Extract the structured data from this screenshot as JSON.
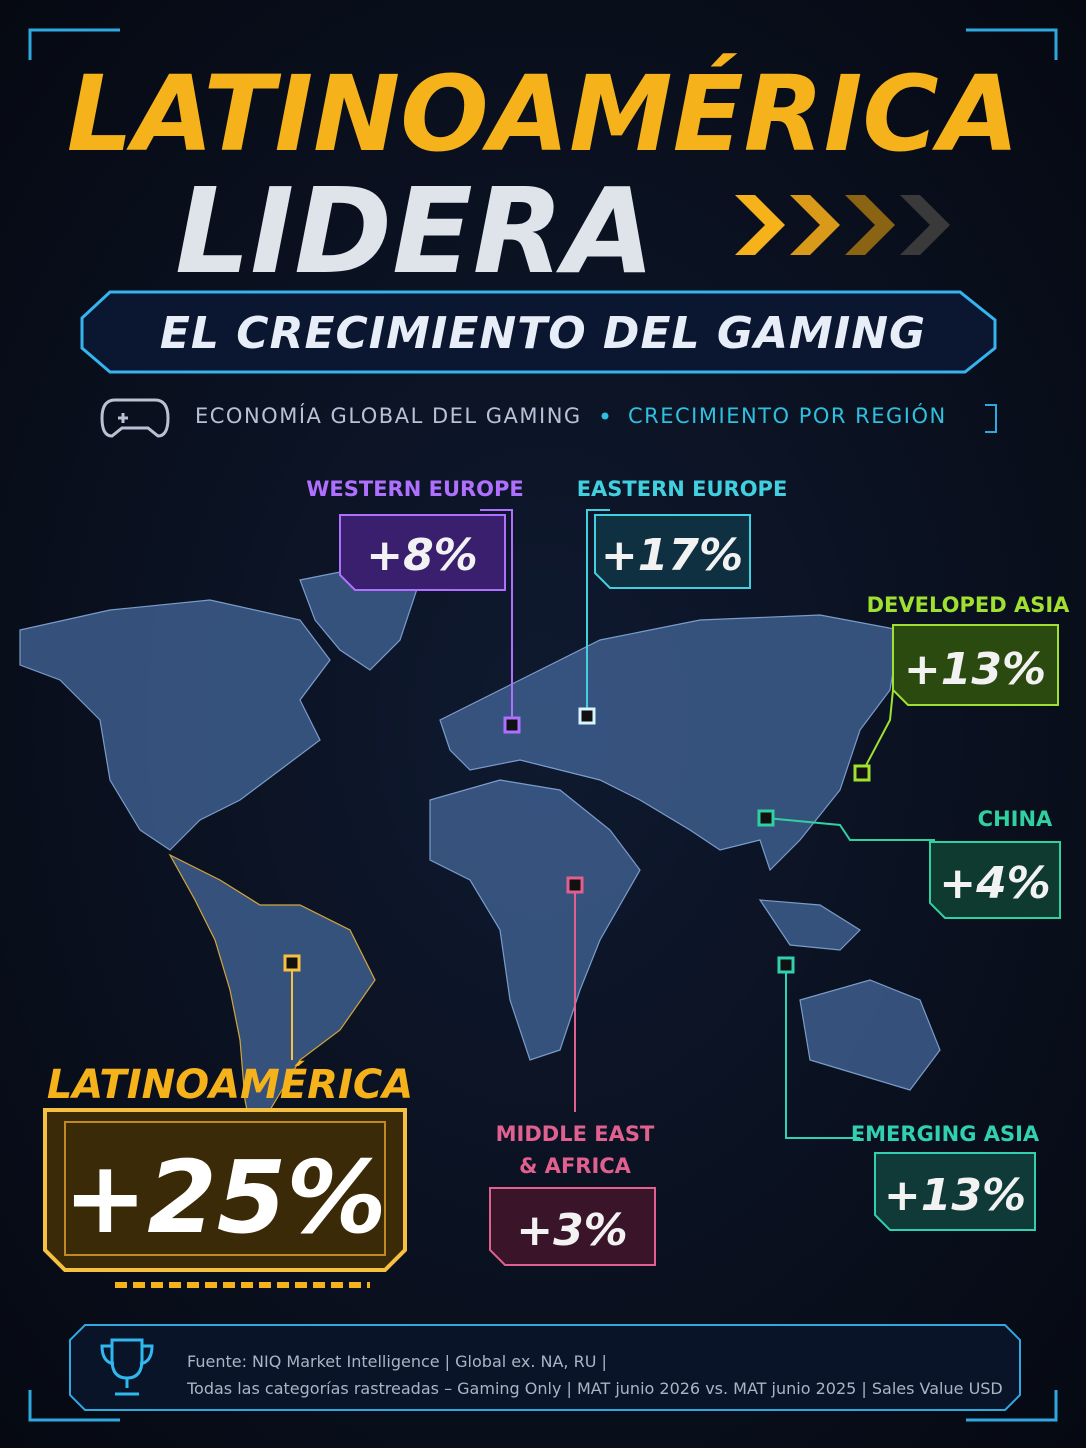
{
  "header": {
    "title_line1": "LATINOAMÉRICA",
    "title_line2": "LIDERA",
    "banner": "EL CRECIMIENTO DEL GAMING",
    "subtitle_left": "ECONOMÍA GLOBAL DEL GAMING",
    "subtitle_right": "CRECIMIENTO POR REGIÓN"
  },
  "regions": [
    {
      "name": "WESTERN EUROPE",
      "value": "+8%"
    },
    {
      "name": "EASTERN EUROPE",
      "value": "+17%"
    },
    {
      "name": "DEVELOPED ASIA",
      "value": "+13%"
    },
    {
      "name": "CHINA",
      "value": "+4%"
    },
    {
      "name": "EMERGING ASIA",
      "value": "+13%"
    },
    {
      "name_line1": "MIDDLE EAST",
      "name_line2": "& AFRICA",
      "value": "+3%"
    },
    {
      "name": "LATINOAMÉRICA",
      "value": "+25%"
    }
  ],
  "footer": {
    "line1": "Fuente: NIQ Market Intelligence | Global ex. NA, RU |",
    "line2": "Todas las categorías rastreadas – Gaming Only | MAT junio 2026 vs. MAT junio 2025 | Sales Value USD"
  }
}
